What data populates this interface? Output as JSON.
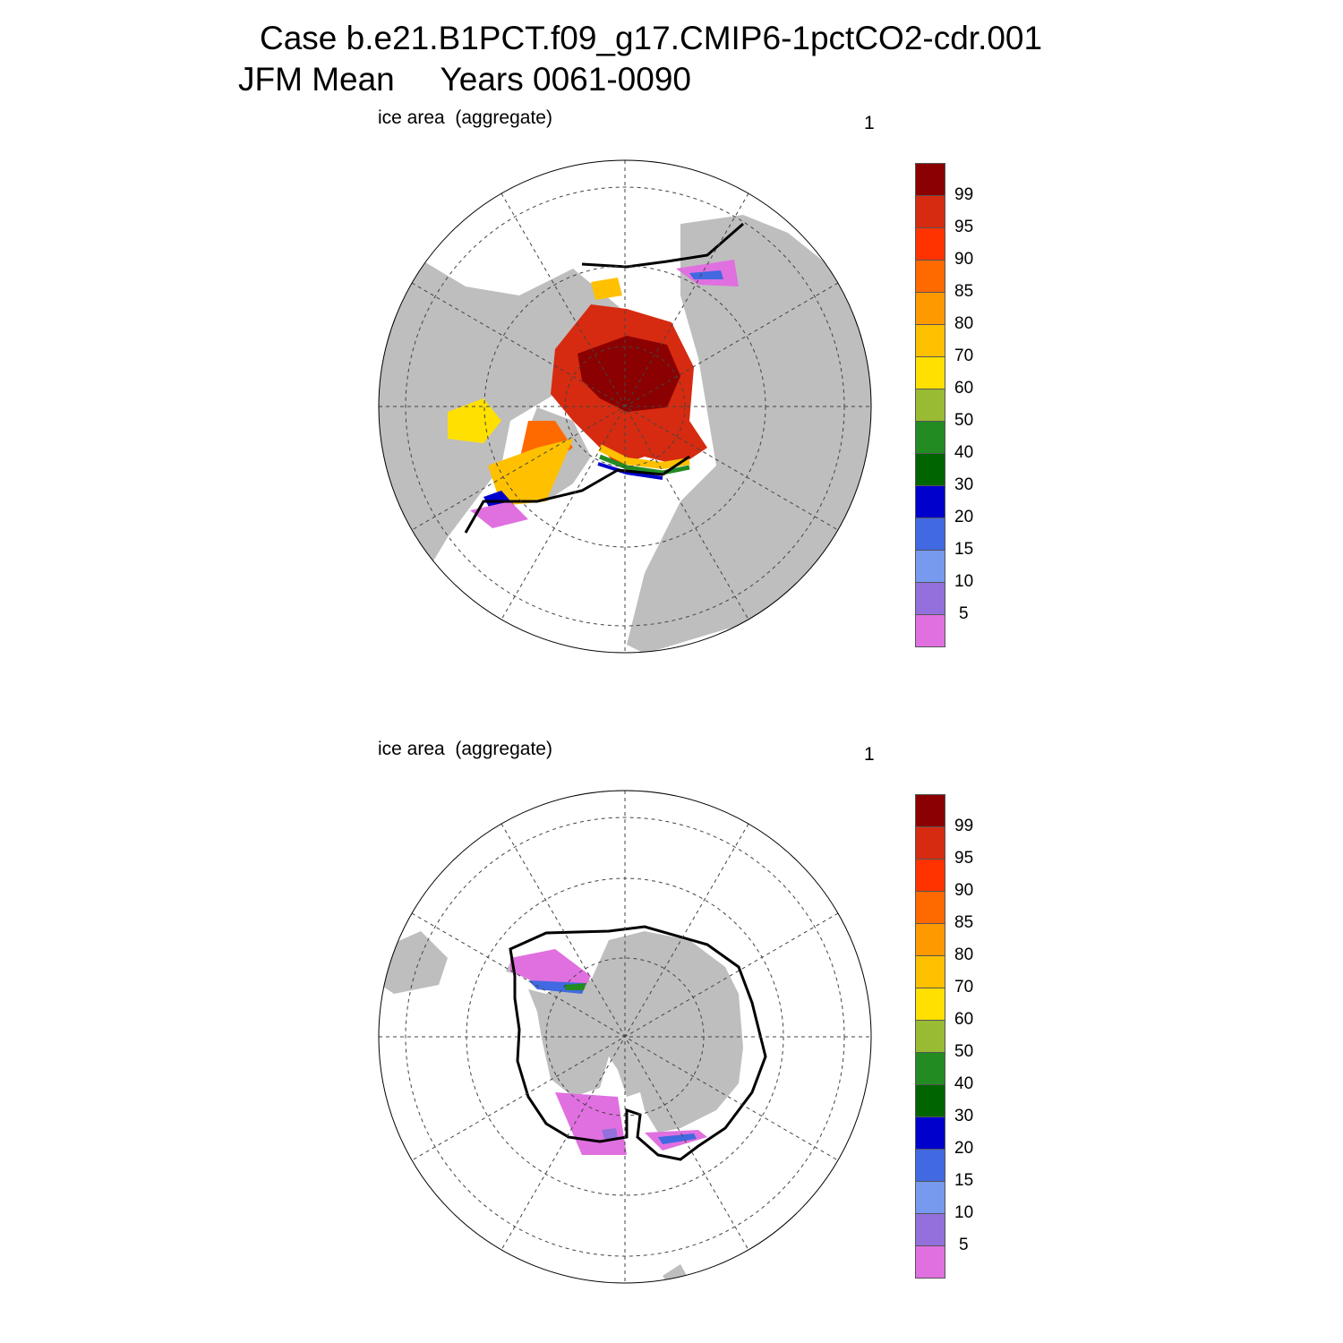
{
  "title": {
    "line1": "Case b.e21.B1PCT.f09_g17.CMIP6-1pctCO2-cdr.001",
    "line2": "JFM Mean     Years 0061-0090"
  },
  "panels": [
    {
      "id": "north",
      "label": "ice area  (aggregate)",
      "corner_number": "1"
    },
    {
      "id": "south",
      "label": "ice area  (aggregate)",
      "corner_number": "1"
    }
  ],
  "colorbar": {
    "labels": [
      "99",
      "95",
      "90",
      "85",
      "80",
      "70",
      "60",
      "50",
      "40",
      "30",
      "20",
      "15",
      "10",
      "5"
    ],
    "colors_top_to_bottom": [
      "#8b0000",
      "#d62b10",
      "#ff3300",
      "#ff6a00",
      "#ff9900",
      "#ffc000",
      "#ffe000",
      "#99bb33",
      "#228b22",
      "#006400",
      "#0000cc",
      "#4169e1",
      "#7799ee",
      "#9370db",
      "#e070e0"
    ]
  },
  "colors": {
    "land": "#bebebe",
    "ocean": "#ffffff",
    "contour": "#000000"
  }
}
